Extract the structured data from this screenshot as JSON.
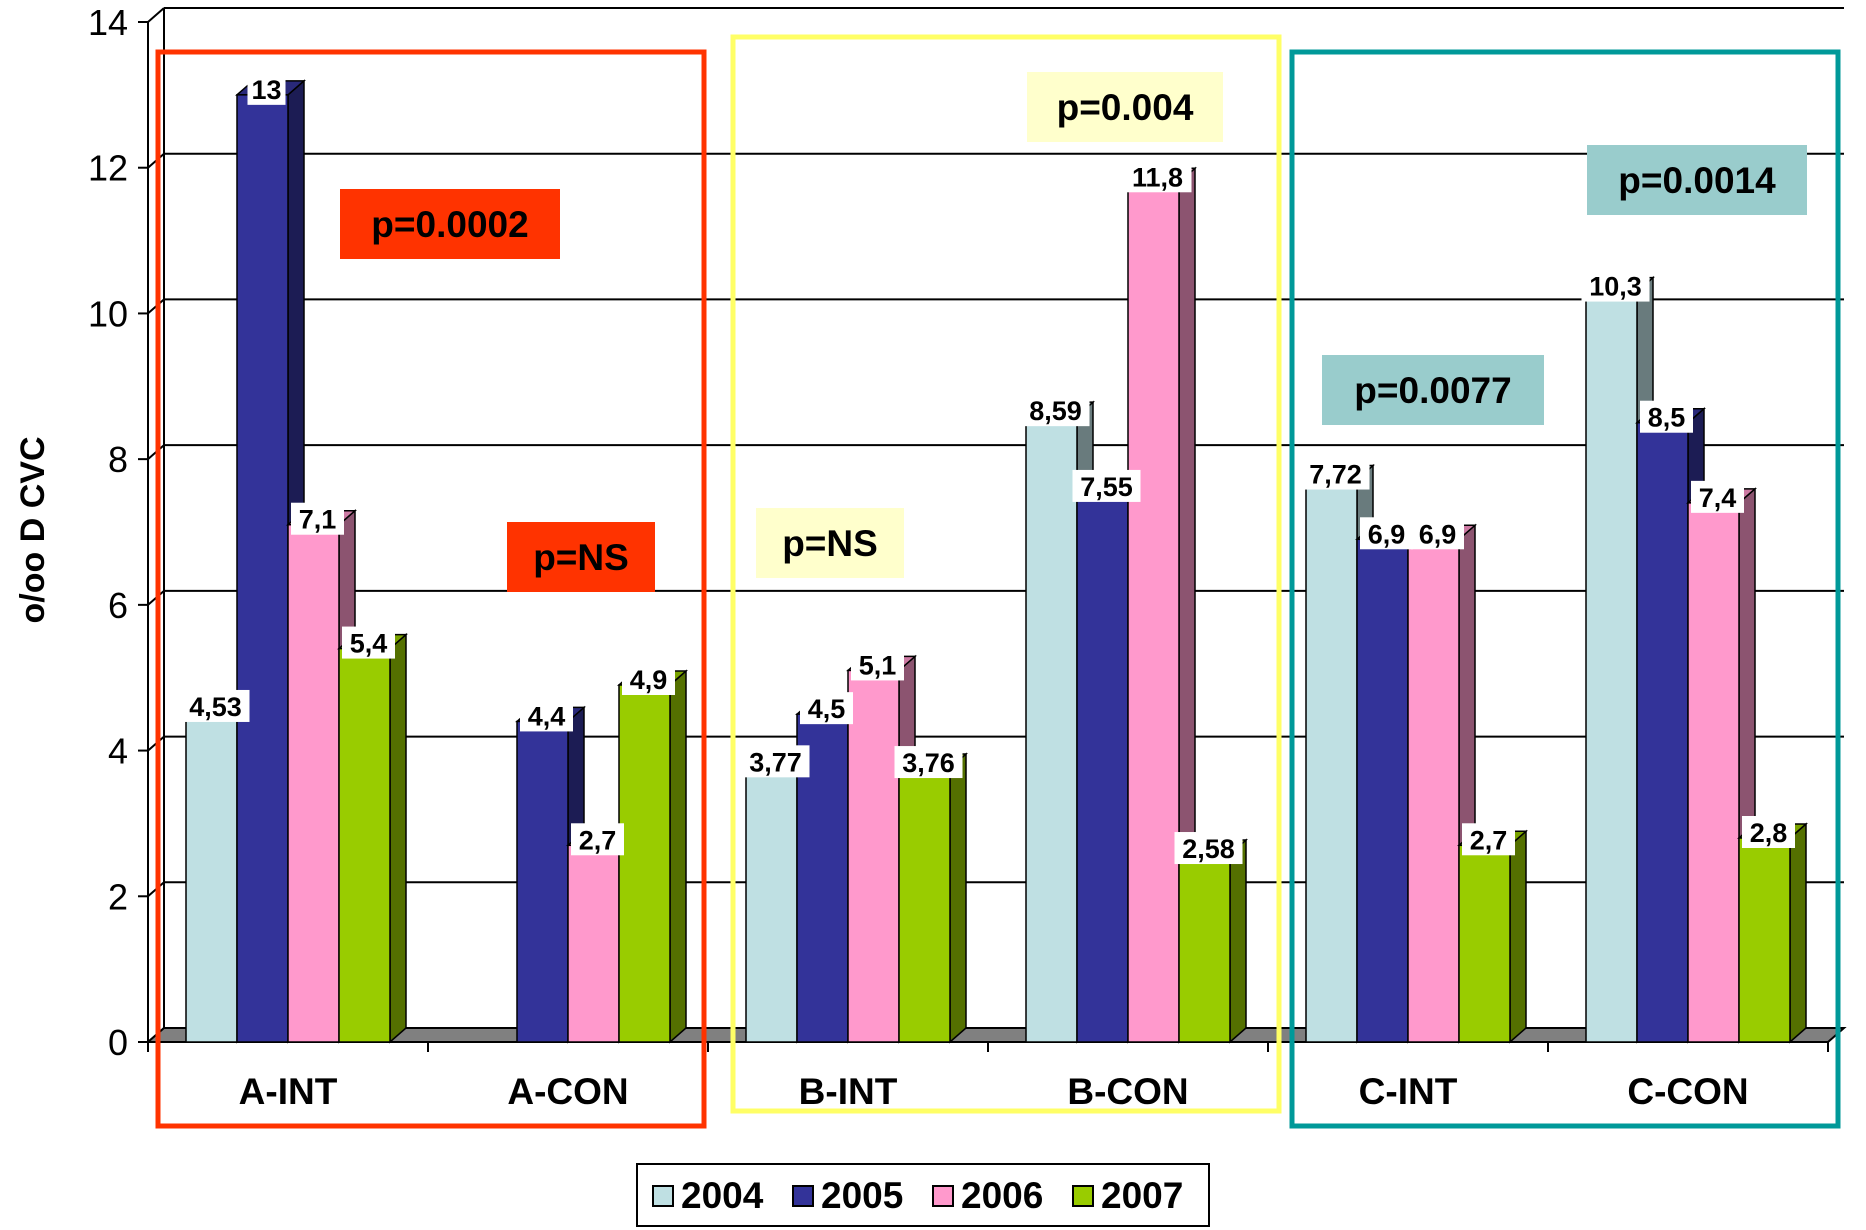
{
  "chart_data": {
    "type": "bar",
    "title": "",
    "xlabel": "",
    "ylabel": "o/oo D CVC",
    "ylim": [
      0,
      14
    ],
    "yticks": [
      0,
      2,
      4,
      6,
      8,
      10,
      12,
      14
    ],
    "grid": true,
    "legend_position": "bottom",
    "categories": [
      "A-INT",
      "A-CON",
      "B-INT",
      "B-CON",
      "C-INT",
      "C-CON"
    ],
    "series": [
      {
        "name": "2004",
        "color": "#bfe0e3",
        "values": [
          4.53,
          null,
          3.77,
          8.59,
          7.72,
          10.3
        ],
        "labels": [
          "4,53",
          "",
          "3,77",
          "8,59",
          "7,72",
          "10,3"
        ]
      },
      {
        "name": "2005",
        "color": "#333399",
        "values": [
          13,
          4.4,
          4.5,
          7.55,
          6.9,
          8.5
        ],
        "labels": [
          "13",
          "4,4",
          "4,5",
          "7,55",
          "6,9",
          "8,5"
        ]
      },
      {
        "name": "2006",
        "color": "#ff99cc",
        "values": [
          7.1,
          2.7,
          5.1,
          11.8,
          6.9,
          7.4
        ],
        "labels": [
          "7,1",
          "2,7",
          "5,1",
          "11,8",
          "6,9",
          "7,4"
        ]
      },
      {
        "name": "2007",
        "color": "#99cc00",
        "values": [
          5.4,
          4.9,
          3.76,
          2.58,
          2.7,
          2.8
        ],
        "labels": [
          "5,4",
          "4,9",
          "3,76",
          "2,58",
          "2,7",
          "2,8"
        ]
      }
    ],
    "annotations": [
      {
        "text": "p=0.0002",
        "fill": "#ff3300"
      },
      {
        "text": "p=NS",
        "fill": "#ff3300"
      },
      {
        "text": "p=NS",
        "fill": "#ffffcc"
      },
      {
        "text": "p=0.004",
        "fill": "#ffffcc"
      },
      {
        "text": "p=0.0077",
        "fill": "#99cccc"
      },
      {
        "text": "p=0.0014",
        "fill": "#99cccc"
      }
    ],
    "group_boxes": [
      {
        "group": "A",
        "color": "#ff3300"
      },
      {
        "group": "B",
        "color": "#ffff66"
      },
      {
        "group": "C",
        "color": "#009999"
      }
    ]
  }
}
